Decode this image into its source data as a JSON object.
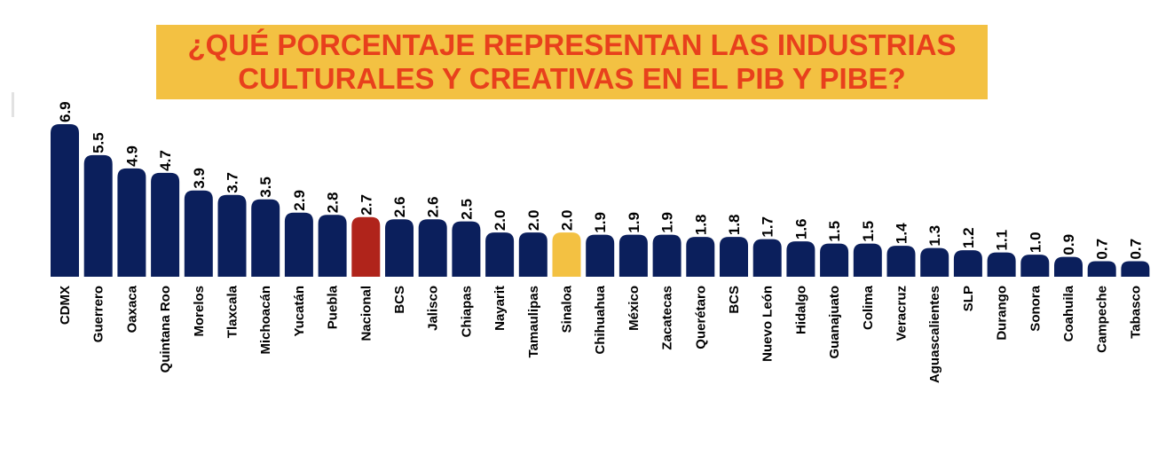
{
  "title_lines": [
    "¿QUÉ PORCENTAJE REPRESENTAN LAS INDUSTRIAS",
    "CULTURALES Y CREATIVAS EN EL PIB Y PIBE?"
  ],
  "colors": {
    "title_bg": "#f3c142",
    "title_text": "#e8401c",
    "bar_default": "#0b1f5c",
    "bar_nacional": "#b0241b",
    "bar_sinaloa": "#f3c142"
  },
  "chart_data": {
    "type": "bar",
    "title": "¿QUÉ PORCENTAJE REPRESENTAN LAS INDUSTRIAS CULTURALES Y CREATIVAS EN EL PIB Y PIBE?",
    "xlabel": "",
    "ylabel": "",
    "ylim": [
      0,
      6.9
    ],
    "grid": false,
    "legend": "none",
    "categories": [
      "CDMX",
      "Guerrero",
      "Oaxaca",
      "Quintana Roo",
      "Morelos",
      "Tlaxcala",
      "Michoacán",
      "Yucatán",
      "Puebla",
      "Nacional",
      "BCS",
      "Jalisco",
      "Chiapas",
      "Nayarit",
      "Tamaulipas",
      "Sinaloa",
      "Chihuahua",
      "México",
      "Zacatecas",
      "Querétaro",
      "BCS",
      "Nuevo León",
      "Hidalgo",
      "Guanajuato",
      "Colima",
      "Veracruz",
      "Aguascalientes",
      "SLP",
      "Durango",
      "Sonora",
      "Coahuila",
      "Campeche",
      "Tabasco"
    ],
    "values": [
      6.9,
      5.5,
      4.9,
      4.7,
      3.9,
      3.7,
      3.5,
      2.9,
      2.8,
      2.7,
      2.6,
      2.6,
      2.5,
      2.0,
      2.0,
      2.0,
      1.9,
      1.9,
      1.9,
      1.8,
      1.8,
      1.7,
      1.6,
      1.5,
      1.5,
      1.4,
      1.3,
      1.2,
      1.1,
      1.0,
      0.9,
      0.7,
      0.7
    ],
    "value_labels": [
      "6.9",
      "5.5",
      "4.9",
      "4.7",
      "3.9",
      "3.7",
      "3.5",
      "2.9",
      "2.8",
      "2.7",
      "2.6",
      "2.6",
      "2.5",
      "2.0",
      "2.0",
      "2.0",
      "1.9",
      "1.9",
      "1.9",
      "1.8",
      "1.8",
      "1.7",
      "1.6",
      "1.5",
      "1.5",
      "1.4",
      "1.3",
      "1.2",
      "1.1",
      "1.0",
      "0.9",
      "0.7",
      "0.7"
    ],
    "highlight": {
      "Nacional": "bar_nacional",
      "Sinaloa": "bar_sinaloa"
    }
  }
}
